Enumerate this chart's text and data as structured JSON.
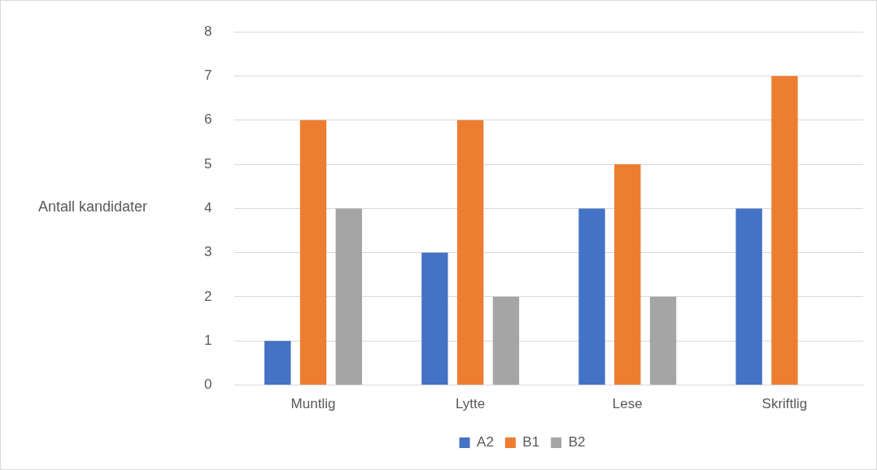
{
  "chart_data": {
    "type": "bar",
    "ylabel": "Antall kandidater",
    "categories": [
      "Muntlig",
      "Lytte",
      "Lese",
      "Skriftlig"
    ],
    "series": [
      {
        "name": "A2",
        "color": "#4472c4",
        "values": [
          1,
          3,
          4,
          4
        ]
      },
      {
        "name": "B1",
        "color": "#ed7d31",
        "values": [
          6,
          6,
          5,
          7
        ]
      },
      {
        "name": "B2",
        "color": "#a5a5a5",
        "values": [
          4,
          2,
          2,
          0
        ]
      }
    ],
    "ylim": [
      0,
      8
    ],
    "yticks": [
      0,
      1,
      2,
      3,
      4,
      5,
      6,
      7,
      8
    ],
    "grid": "y",
    "legend": "bottom"
  }
}
